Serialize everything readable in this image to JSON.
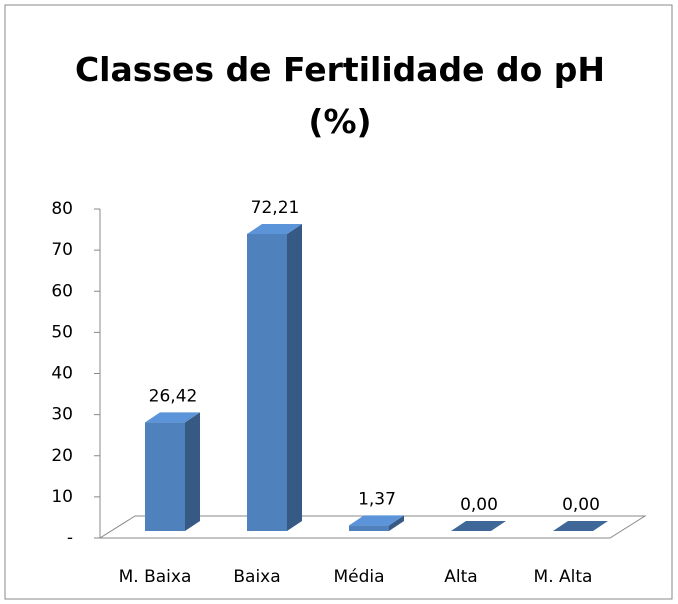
{
  "chart_data": {
    "type": "bar3d",
    "title": "Classes de Fertilidade do pH (%)",
    "categories": [
      "M. Baixa",
      "Baixa",
      "Média",
      "Alta",
      "M. Alta"
    ],
    "values": [
      26.42,
      72.21,
      1.37,
      0,
      0
    ],
    "value_labels": [
      "26,42",
      "72,21",
      "1,37",
      "0,00",
      "0,00"
    ],
    "color": "#4f81bd",
    "ylim": [
      0,
      80
    ],
    "yticks": [
      {
        "value": 0,
        "label": "-"
      },
      10,
      20,
      30,
      40,
      50,
      60,
      70,
      80
    ]
  }
}
